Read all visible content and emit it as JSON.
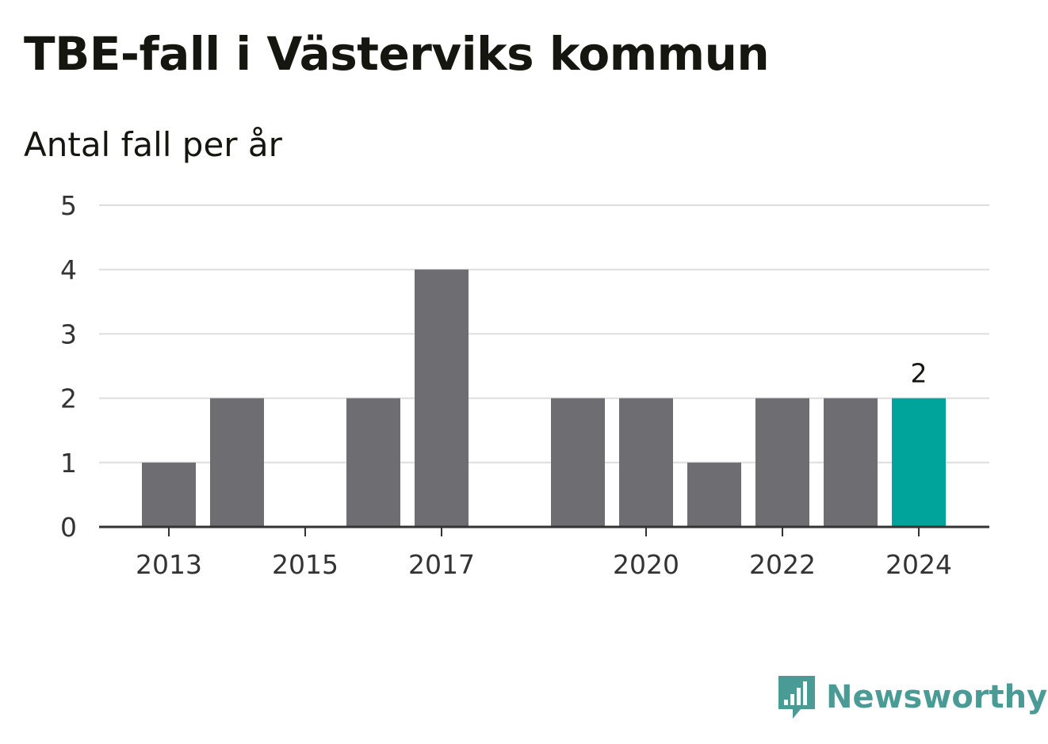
{
  "title": "TBE-fall i Västerviks kommun",
  "subtitle": "Antal fall per år",
  "brand": {
    "name": "Newsworthy",
    "logo_icon": "bar-chart-speech-bubble-icon",
    "color": "#4a9a96"
  },
  "colors": {
    "bar": "#6e6d72",
    "highlight": "#00a49a",
    "grid": "#dddddd",
    "axis": "#333333"
  },
  "chart_data": {
    "type": "bar",
    "title": "TBE-fall i Västerviks kommun",
    "subtitle": "Antal fall per år",
    "x": [
      2013,
      2014,
      2015,
      2016,
      2017,
      2018,
      2019,
      2020,
      2021,
      2022,
      2023,
      2024
    ],
    "values": [
      1,
      2,
      0,
      2,
      4,
      0,
      2,
      2,
      1,
      2,
      2,
      2
    ],
    "highlight": [
      2024
    ],
    "data_labels": [
      {
        "x": 2024,
        "text": "2"
      }
    ],
    "x_tick_labels": [
      "2013",
      "2015",
      "2017",
      "2020",
      "2022",
      "2024"
    ],
    "y_tick_labels": [
      "0",
      "1",
      "2",
      "3",
      "4",
      "5"
    ],
    "ylim": [
      0,
      5
    ],
    "grid": true,
    "legend": "none"
  }
}
